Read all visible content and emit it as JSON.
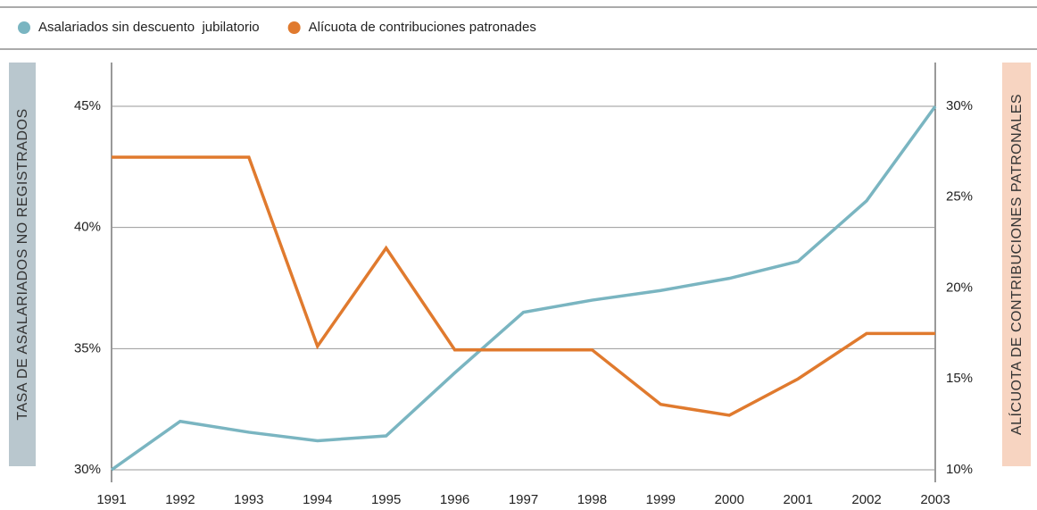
{
  "chart_data": {
    "type": "line",
    "x": [
      1991,
      1992,
      1993,
      1994,
      1995,
      1996,
      1997,
      1998,
      1999,
      2000,
      2001,
      2002,
      2003
    ],
    "xlim": [
      1991,
      2003
    ],
    "xticks": [
      1991,
      1992,
      1993,
      1994,
      1995,
      1996,
      1997,
      1998,
      1999,
      2000,
      2001,
      2002,
      2003
    ],
    "ylabel": "TASA DE ASALARIADOS NO REGISTRADOS",
    "y2label": "ALÍCUOTA DE CONTRIBUCIONES PATRONALES",
    "ylim": [
      30,
      45
    ],
    "yticks": [
      {
        "value": 30,
        "label": "30%"
      },
      {
        "value": 35,
        "label": "35%"
      },
      {
        "value": 40,
        "label": "40%"
      },
      {
        "value": 45,
        "label": "45%"
      }
    ],
    "y2lim": [
      10,
      30
    ],
    "y2ticks": [
      {
        "value": 10,
        "label": "10%"
      },
      {
        "value": 15,
        "label": "15%"
      },
      {
        "value": 20,
        "label": "20%"
      },
      {
        "value": 25,
        "label": "25%"
      },
      {
        "value": 30,
        "label": "30%"
      }
    ],
    "grid": true,
    "series": [
      {
        "name": "Asalariados sin descuento  jubilatorio",
        "color": "#7ab5c1",
        "values": [
          30,
          32.0,
          31.55,
          31.2,
          31.4,
          34.0,
          36.5,
          37.0,
          37.4,
          37.9,
          38.6,
          41.1,
          45.0
        ]
      },
      {
        "name": "Alícuota de contribuciones patronades",
        "color": "#e07a2e",
        "axis": "y2",
        "values": [
          27.2,
          27.2,
          27.2,
          16.8,
          22.2,
          16.6,
          16.6,
          16.6,
          13.6,
          13.0,
          15.0,
          17.5,
          17.5
        ]
      }
    ]
  }
}
